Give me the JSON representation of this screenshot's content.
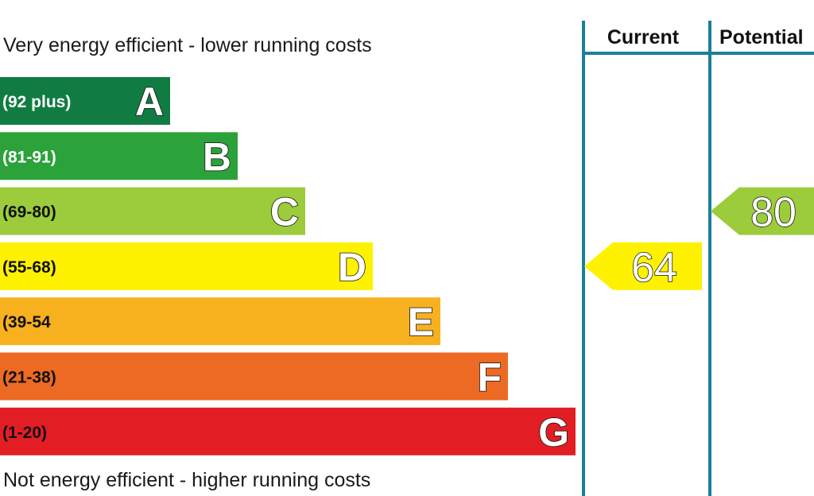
{
  "captions": {
    "top": "Very energy efficient - lower running costs",
    "bottom": "Not energy efficient - higher running costs"
  },
  "columns": {
    "current": "Current",
    "potential": "Potential"
  },
  "colors": {
    "divider": "#1a7f9a"
  },
  "chart_data": {
    "type": "bar",
    "categories": [
      "A",
      "B",
      "C",
      "D",
      "E",
      "F",
      "G"
    ],
    "bands": [
      {
        "letter": "A",
        "range": "(92 plus)",
        "min": 92,
        "max": 100,
        "color": "#117c42",
        "dark_text": false
      },
      {
        "letter": "B",
        "range": "(81-91)",
        "min": 81,
        "max": 91,
        "color": "#2ca23a",
        "dark_text": false
      },
      {
        "letter": "C",
        "range": "(69-80)",
        "min": 69,
        "max": 80,
        "color": "#9ccb3b",
        "dark_text": true
      },
      {
        "letter": "D",
        "range": "(55-68)",
        "min": 55,
        "max": 68,
        "color": "#fff200",
        "dark_text": true
      },
      {
        "letter": "E",
        "range": "(39-54",
        "min": 39,
        "max": 54,
        "color": "#f7b11f",
        "dark_text": true
      },
      {
        "letter": "F",
        "range": "(21-38)",
        "min": 21,
        "max": 38,
        "color": "#ec6a23",
        "dark_text": true
      },
      {
        "letter": "G",
        "range": "(1-20)",
        "min": 1,
        "max": 20,
        "color": "#e31d24",
        "dark_text": true
      }
    ],
    "ratings": [
      {
        "column": "Current",
        "value": 64,
        "band": "D",
        "color": "#fff200"
      },
      {
        "column": "Potential",
        "value": 80,
        "band": "C",
        "color": "#9ccb3b"
      }
    ]
  }
}
